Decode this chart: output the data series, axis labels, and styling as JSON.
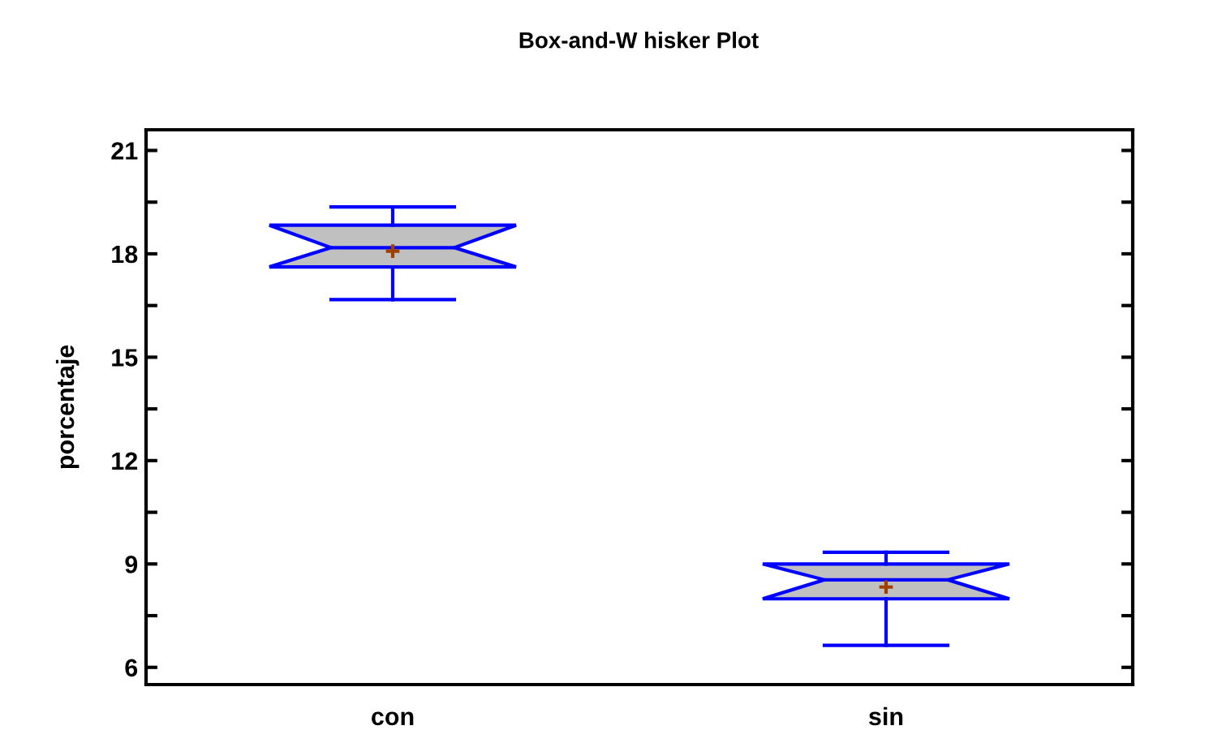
{
  "chart_data": {
    "type": "box",
    "title": "Box-and-W hisker Plot",
    "ylabel": "porcentaje",
    "categories": [
      "con",
      "sin"
    ],
    "boxes": [
      {
        "low": 16.67,
        "q1": 17.62,
        "median": 18.18,
        "q3": 18.83,
        "high": 19.36,
        "mean": 18.08
      },
      {
        "low": 6.64,
        "q1": 7.99,
        "median": 8.54,
        "q3": 9.0,
        "high": 9.34,
        "mean": 8.33
      }
    ],
    "color": "#0000ff",
    "ylim": [
      5.5,
      21.6
    ],
    "yticks": [
      6,
      {
        "value": 7.5,
        "label": null
      },
      9,
      {
        "value": 10.5,
        "label": null
      },
      12,
      {
        "value": 13.5,
        "label": null
      },
      15,
      {
        "value": 16.5,
        "label": null
      },
      18,
      {
        "value": 19.5,
        "label": null
      },
      21
    ],
    "grid": false
  }
}
